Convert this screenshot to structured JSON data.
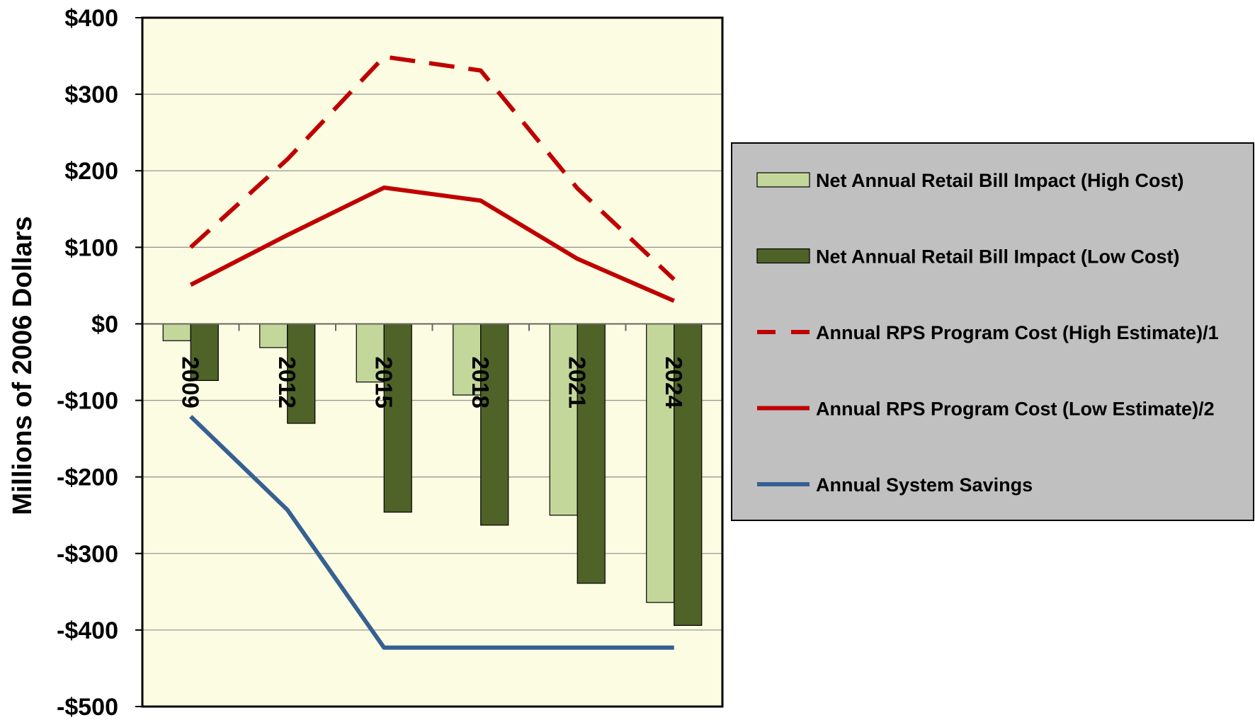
{
  "chart_data": {
    "type": "bar",
    "title": "",
    "xlabel": "",
    "ylabel": "Millions of 2006 Dollars",
    "ylim": [
      -500,
      400
    ],
    "yticks": [
      400,
      300,
      200,
      100,
      0,
      -100,
      -200,
      -300,
      -400,
      -500
    ],
    "ytick_labels": [
      "$400",
      "$300",
      "$200",
      "$100",
      "$0",
      "-$100",
      "-$200",
      "-$300",
      "-$400",
      "-$500"
    ],
    "categories": [
      "2009",
      "2012",
      "2015",
      "2018",
      "2021",
      "2024"
    ],
    "grid": true,
    "legend_position": "right",
    "series": [
      {
        "name": "Net Annual Retail Bill Impact (High Cost)",
        "kind": "bar",
        "color": "#c4d79b",
        "values": [
          -22,
          -31,
          -76,
          -93,
          -250,
          -364
        ]
      },
      {
        "name": "Net Annual Retail Bill Impact (Low Cost)",
        "kind": "bar",
        "color": "#4f6228",
        "values": [
          -74,
          -130,
          -246,
          -263,
          -339,
          -394
        ]
      },
      {
        "name": "Annual RPS Program Cost (High Estimate)/1",
        "kind": "line",
        "style": "dashed",
        "color": "#c00000",
        "values": [
          100,
          215,
          349,
          331,
          177,
          58
        ]
      },
      {
        "name": "Annual RPS Program Cost (Low Estimate)/2",
        "kind": "line",
        "style": "solid",
        "color": "#c00000",
        "values": [
          51,
          116,
          178,
          161,
          85,
          30
        ]
      },
      {
        "name": "Annual System Savings",
        "kind": "line",
        "style": "solid",
        "color": "#376092",
        "values": [
          -121,
          -243,
          -423,
          -423,
          -423,
          -423
        ]
      }
    ],
    "colors": {
      "plot_background": "#fcfce2",
      "legend_background": "#c0c0c0",
      "gridline": "#999999"
    }
  }
}
